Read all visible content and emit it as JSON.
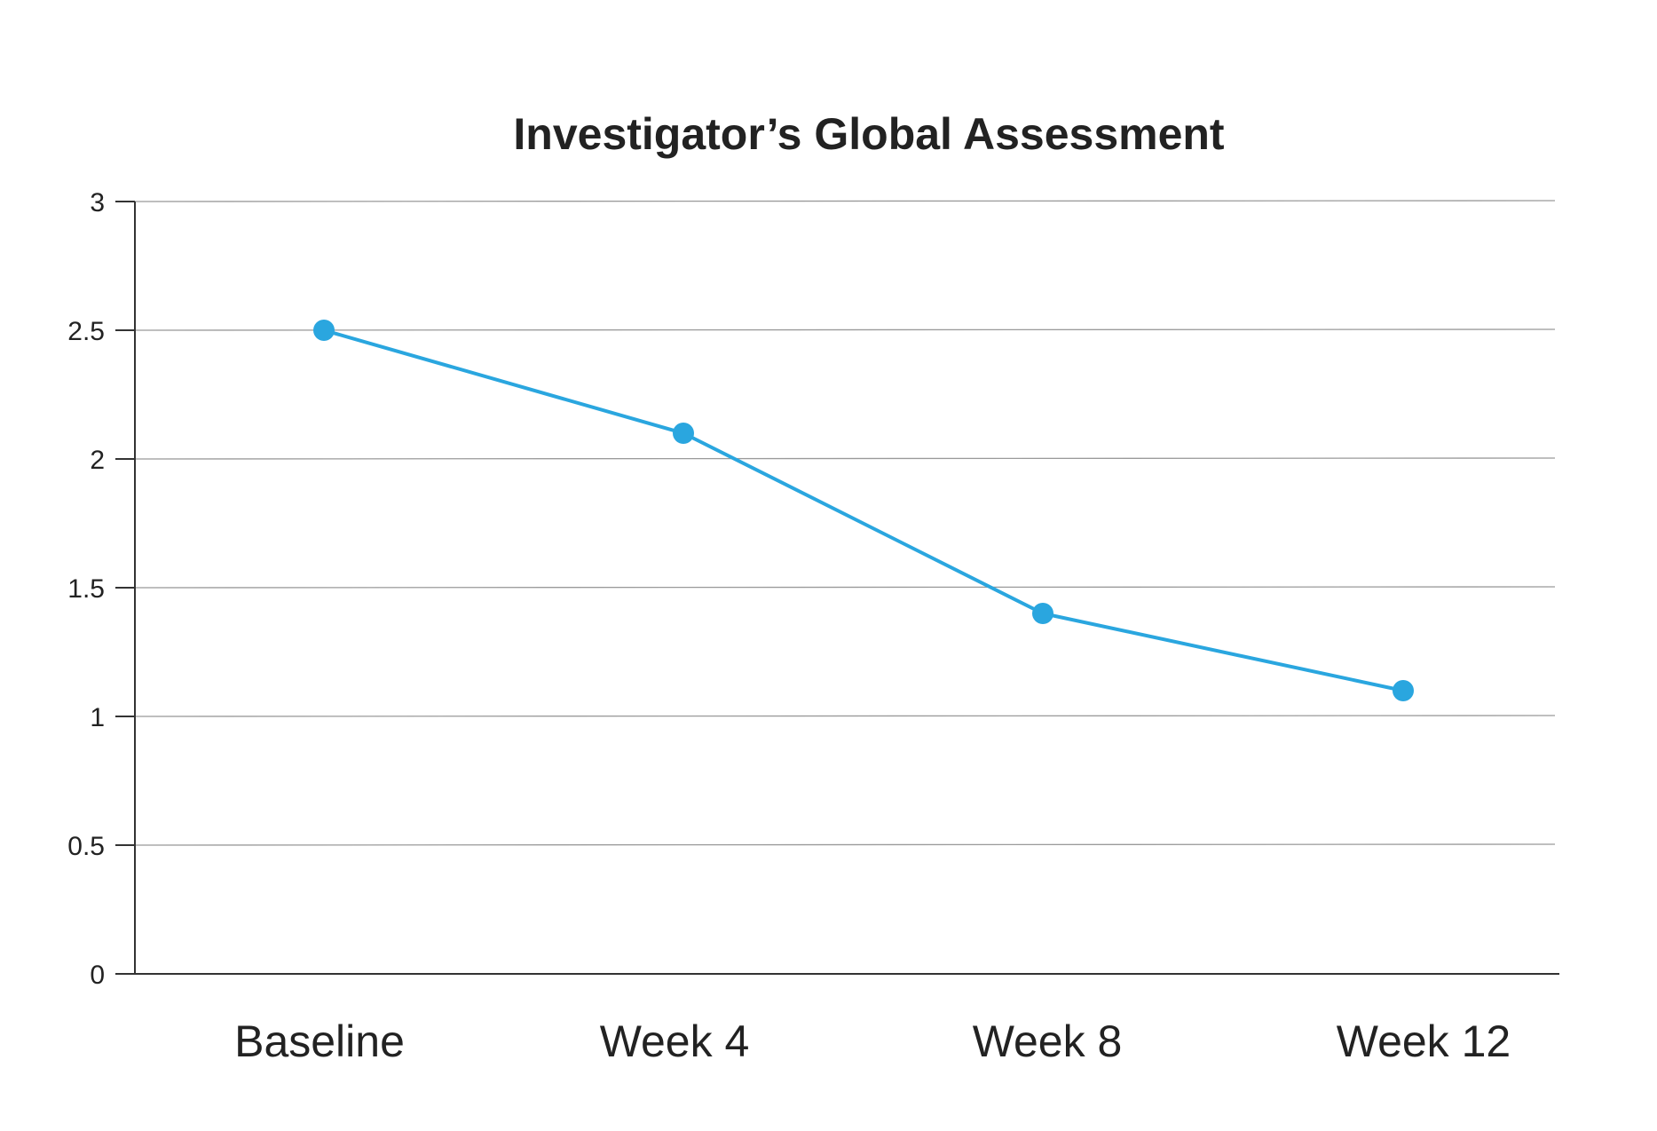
{
  "chart_data": {
    "type": "line",
    "title": "Investigator’s Global Assessment",
    "xlabel": "",
    "ylabel": "",
    "categories": [
      "Baseline",
      "Week 4",
      "Week 8",
      "Week 12"
    ],
    "series": [
      {
        "values": [
          2.5,
          2.1,
          1.4,
          1.1
        ]
      }
    ],
    "ylim": [
      0,
      3
    ],
    "yticks": [
      "0",
      "0.5",
      "1",
      "1.5",
      "2",
      "2.5",
      "3"
    ],
    "grid": true,
    "legend": "none",
    "colors": {
      "series": "#2aa6df",
      "text": "#222222",
      "grid": "#9a9a9a",
      "axis": "#333333"
    }
  }
}
